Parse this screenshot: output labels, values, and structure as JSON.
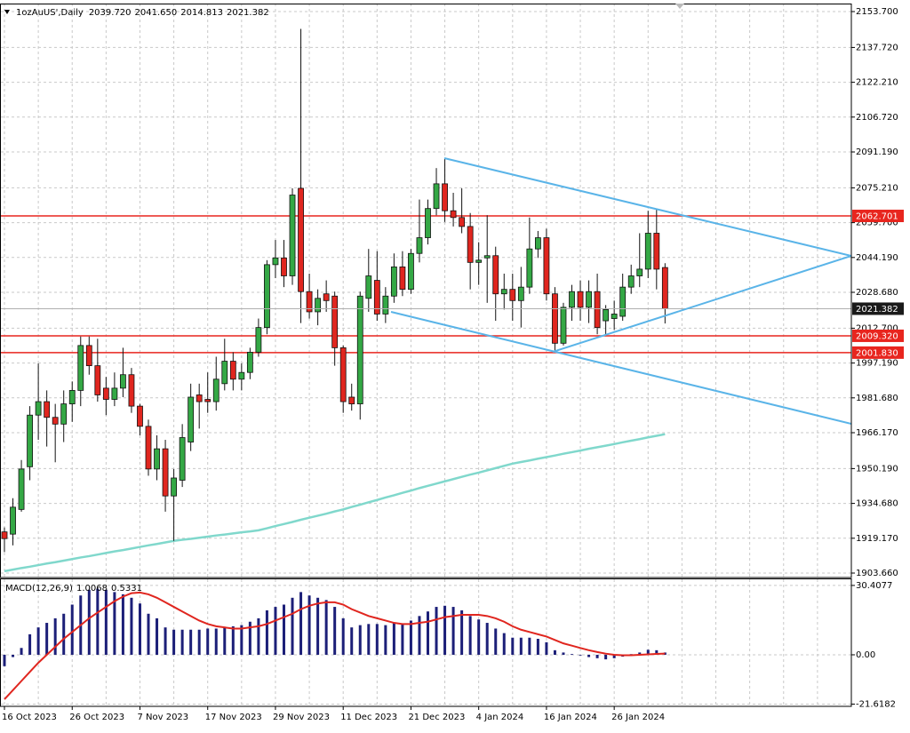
{
  "chart_data": [
    {
      "type": "candlestick",
      "title": "1ozAuUS',Daily",
      "ohlc_labels": [
        "2039.720",
        "2041.650",
        "2014.813",
        "2021.382"
      ],
      "categories": [
        "16 Oct 2023",
        null,
        null,
        null,
        null,
        null,
        null,
        null,
        "26 Oct 2023",
        null,
        null,
        null,
        null,
        null,
        null,
        null,
        "7 Nov 2023",
        null,
        null,
        null,
        null,
        null,
        null,
        null,
        "17 Nov 2023",
        null,
        null,
        null,
        null,
        null,
        null,
        null,
        "29 Nov 2023",
        null,
        null,
        null,
        null,
        null,
        null,
        null,
        "11 Dec 2023",
        null,
        null,
        null,
        null,
        null,
        null,
        null,
        "21 Dec 2023",
        null,
        null,
        null,
        null,
        null,
        null,
        null,
        "4 Jan 2024",
        null,
        null,
        null,
        null,
        null,
        null,
        null,
        "16 Jan 2024",
        null,
        null,
        null,
        null,
        null,
        null,
        null,
        "26 Jan 2024",
        null,
        null,
        null,
        null,
        null,
        null
      ],
      "open": [
        1922,
        1921,
        1932,
        1951,
        1974,
        1980,
        1973,
        1970,
        1979,
        1985,
        2005,
        1996,
        1986,
        1981,
        1986,
        1992,
        1978,
        1969,
        1950,
        1959,
        1938,
        1945,
        1962,
        1983,
        1981,
        1980,
        1988,
        1998,
        1990,
        1993,
        2002,
        2013,
        2041,
        2044,
        2036,
        2075,
        2029,
        2020,
        2028,
        2027,
        2004,
        1982,
        1979,
        2026,
        2034,
        2019,
        2027,
        2040,
        2030,
        2046,
        2053,
        2066,
        2077,
        2065,
        2062,
        2058,
        2042,
        2044,
        2045,
        2028,
        2030,
        2025,
        2031,
        2048,
        2053,
        2028,
        2006,
        2022,
        2029,
        2022,
        2029,
        2016,
        2017,
        2018,
        2031,
        2036,
        2039,
        2055,
        2039.72
      ],
      "high": [
        1924,
        1937,
        1954,
        1978,
        1997,
        1985,
        1979,
        1985,
        1989,
        2009,
        2009,
        2008,
        1991,
        1993,
        2004,
        1995,
        1979,
        1972,
        1965,
        1963,
        1950,
        1970,
        1988,
        1988,
        1993,
        2000,
        2008,
        2002,
        1997,
        2004,
        2017,
        2043,
        2052,
        2052,
        2075,
        2146,
        2037,
        2030,
        2034,
        2029,
        2005,
        1988,
        2029,
        2048,
        2047,
        2031,
        2046,
        2047,
        2048,
        2070,
        2070,
        2084,
        2088,
        2073,
        2075,
        2064,
        2051,
        2063,
        2049,
        2037,
        2037,
        2040,
        2062,
        2056,
        2057,
        2031,
        2024,
        2032,
        2034,
        2034,
        2037,
        2023,
        2025,
        2037,
        2041,
        2055,
        2065,
        2066,
        2041.65
      ],
      "low": [
        1913,
        1916,
        1931,
        1945,
        1963,
        1960,
        1953,
        1962,
        1971,
        1978,
        1992,
        1980,
        1974,
        1978,
        1982,
        1975,
        1965,
        1947,
        1945,
        1931,
        1918,
        1942,
        1958,
        1968,
        1975,
        1976,
        1985,
        1985,
        1985,
        1990,
        2000,
        2010,
        2035,
        2031,
        2032,
        2015,
        2017,
        2014,
        2020,
        1996,
        1975,
        1976,
        1972,
        2020,
        2016,
        2015,
        2024,
        2027,
        2028,
        2042,
        2050,
        2063,
        2060,
        2058,
        2055,
        2030,
        2032,
        2024,
        2016,
        2021,
        2016,
        2013,
        2028,
        2044,
        2025,
        2002,
        2005,
        2016,
        2016,
        2015,
        2010,
        2010,
        2012,
        2016,
        2028,
        2031,
        2035,
        2030,
        2014.813
      ],
      "close": [
        1919,
        1933,
        1950,
        1974,
        1980,
        1973,
        1970,
        1979,
        1985,
        2005,
        1996,
        1983,
        1981,
        1986,
        1992,
        1978,
        1969,
        1950,
        1959,
        1938,
        1946,
        1964,
        1982,
        1980,
        1980,
        1990,
        1998,
        1990,
        1993,
        2002,
        2013,
        2041,
        2044,
        2036,
        2072,
        2029,
        2020,
        2026,
        2025,
        2004,
        1980,
        1979,
        2027,
        2036,
        2019,
        2027,
        2040,
        2030,
        2046,
        2053,
        2066,
        2077,
        2065,
        2062,
        2058,
        2042,
        2043,
        2045,
        2028,
        2030,
        2025,
        2031,
        2048,
        2053,
        2028,
        2006,
        2022,
        2029,
        2022,
        2029,
        2013,
        2021,
        2019,
        2031,
        2036,
        2039,
        2055,
        2039,
        2021.382
      ],
      "up_color": "#34a845",
      "down_color": "#e0261f",
      "ma": {
        "color": "#80d8cc",
        "values": [
          1904.5,
          1905.2,
          1905.9,
          1906.5,
          1907.2,
          1907.9,
          1908.5,
          1909.2,
          1909.9,
          1910.6,
          1911.2,
          1911.9,
          1912.6,
          1913.3,
          1913.9,
          1914.6,
          1915.3,
          1916.0,
          1916.6,
          1917.3,
          1918.0,
          1918.5,
          1918.9,
          1919.4,
          1919.9,
          1920.4,
          1920.8,
          1921.3,
          1921.8,
          1922.2,
          1922.7,
          1923.6,
          1924.6,
          1925.5,
          1926.4,
          1927.4,
          1928.3,
          1929.2,
          1930.1,
          1931.1,
          1932.0,
          1933.1,
          1934.1,
          1935.2,
          1936.2,
          1937.3,
          1938.3,
          1939.4,
          1940.4,
          1941.5,
          1942.5,
          1943.5,
          1944.5,
          1945.5,
          1946.5,
          1947.5,
          1948.4,
          1949.4,
          1950.4,
          1951.4,
          1952.4,
          1953.1,
          1953.8,
          1954.6,
          1955.3,
          1956.0,
          1956.8,
          1957.5,
          1958.2,
          1959.0,
          1959.7,
          1960.4,
          1961.1,
          1961.9,
          1962.6,
          1963.3,
          1964.1,
          1964.8,
          1965.5
        ]
      },
      "ylim": [
        1901.68,
        2157.27
      ],
      "yticks": [
        {
          "value": 2153.7,
          "label": "2153.700"
        },
        {
          "value": 2137.72,
          "label": "2137.720"
        },
        {
          "value": 2122.21,
          "label": "2122.210"
        },
        {
          "value": 2106.72,
          "label": "2106.720"
        },
        {
          "value": 2091.19,
          "label": "2091.190"
        },
        {
          "value": 2075.21,
          "label": "2075.210"
        },
        {
          "value": 2059.7,
          "label": "2059.700"
        },
        {
          "value": 2044.19,
          "label": "2044.190"
        },
        {
          "value": 2028.68,
          "label": "2028.680"
        },
        {
          "value": 2012.7,
          "label": "2012.700"
        },
        {
          "value": 1997.19,
          "label": "1997.190"
        },
        {
          "value": 1981.68,
          "label": "1981.680"
        },
        {
          "value": 1966.17,
          "label": "1966.170"
        },
        {
          "value": 1950.19,
          "label": "1950.190"
        },
        {
          "value": 1934.68,
          "label": "1934.680"
        },
        {
          "value": 1919.17,
          "label": "1919.170"
        },
        {
          "value": 1903.66,
          "label": "1903.660"
        }
      ],
      "hlines": [
        {
          "price": 2062.701,
          "color": "#e8251e"
        },
        {
          "price": {
            "value": 2009.32,
            "label": "2009.320"
          },
          "color": "#e8251e"
        },
        {
          "price": {
            "value": 2001.83,
            "label": "2001.830"
          },
          "color": "#e8251e"
        }
      ],
      "grid": true
    },
    {
      "type": "macd",
      "title": "MACD(12,26,9)",
      "header_values": [
        "1.0068",
        "0.5331"
      ],
      "series": [
        {
          "type": "bar",
          "color": "#1c1f78",
          "values": [
            -5,
            -1,
            3,
            9,
            12,
            14,
            16,
            18,
            22,
            26,
            28.5,
            29,
            28.5,
            27.5,
            26.5,
            25,
            22.5,
            18,
            16,
            12,
            11,
            11,
            11,
            11,
            11.5,
            11.5,
            12,
            12.5,
            13,
            14.5,
            16,
            19.5,
            21,
            22,
            25,
            27.5,
            26,
            25,
            24,
            21,
            16,
            12,
            13,
            13.5,
            13.5,
            13,
            14,
            13.5,
            15,
            17,
            19,
            21,
            21.5,
            21,
            19.5,
            17,
            15.5,
            14,
            11.5,
            9.5,
            7.5,
            7.5,
            7.5,
            7,
            5.5,
            2,
            1,
            0.3,
            -0.3,
            -1,
            -1.5,
            -2,
            -1.5,
            -0.8,
            0.3,
            1,
            2.2,
            2,
            1.0068
          ]
        },
        {
          "type": "line",
          "color": "#e0261f",
          "values": [
            -19.5,
            -15.5,
            -11.5,
            -7.5,
            -3.5,
            0,
            3.5,
            7,
            10,
            13,
            16,
            18.5,
            21,
            23.5,
            25.5,
            27,
            27.3,
            26.5,
            25,
            23,
            21,
            19,
            17,
            15,
            13.5,
            12.5,
            12,
            11.5,
            11.5,
            12,
            12.5,
            13.5,
            15,
            16.5,
            18,
            20,
            21.5,
            22.5,
            23,
            23,
            22,
            20,
            18.5,
            17,
            16,
            15,
            14,
            13.5,
            13.5,
            14,
            14.5,
            15.5,
            16.5,
            17,
            17.5,
            17.5,
            17.5,
            17,
            16,
            14.5,
            12.5,
            11,
            10,
            9,
            8,
            6.5,
            5,
            4,
            3,
            2,
            1.2,
            0.5,
            0,
            -0.2,
            -0.2,
            0,
            0.2,
            0.4,
            0.5331
          ]
        }
      ],
      "ylim": [
        -22.6,
        33.1
      ],
      "yticks": [
        30.4077,
        {
          "value": 0,
          "label": "0.00"
        },
        -21.6182
      ],
      "grid": true
    }
  ]
}
